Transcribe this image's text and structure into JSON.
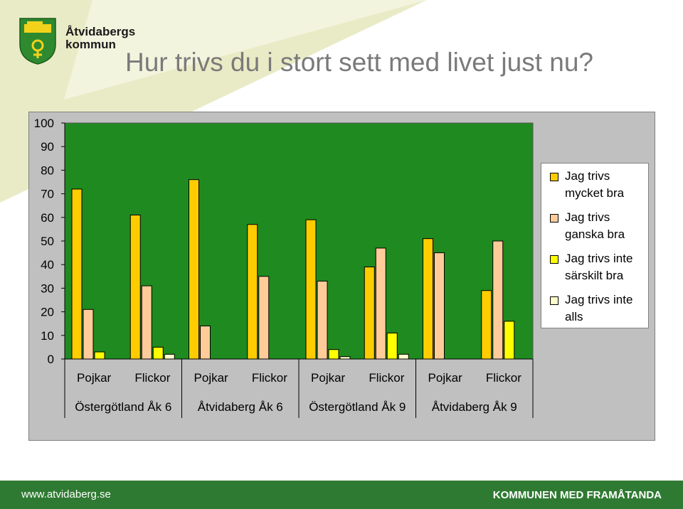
{
  "header": {
    "logo_line1": "Åtvidabergs",
    "logo_line2": "kommun",
    "title": "Hur trivs du i stort sett med livet just nu?"
  },
  "footer": {
    "url": "www.atvidaberg.se",
    "slogan": "KOMMUNEN MED FRAMÅTANDA"
  },
  "colors": {
    "plot_area": "#1f8a1f",
    "chart_background": "#c0c0c0",
    "footer": "#2f7a32",
    "accent_swoosh": "#e9ebc6"
  },
  "chart_data": {
    "type": "bar",
    "title": "",
    "xlabel": "",
    "ylabel": "",
    "ylim": [
      0,
      100
    ],
    "yticks": [
      0,
      10,
      20,
      30,
      40,
      50,
      60,
      70,
      80,
      90,
      100
    ],
    "categories": [
      "Pojkar",
      "Flickor",
      "Pojkar",
      "Flickor",
      "Pojkar",
      "Flickor",
      "Pojkar",
      "Flickor"
    ],
    "groups": [
      "Östergötland Åk 6",
      "Åtvidaberg Åk 6",
      "Östergötland Åk 9",
      "Åtvidaberg Åk 9"
    ],
    "legend_position": "right",
    "grid": false,
    "series": [
      {
        "name": "Jag trivs mycket bra",
        "color": "#ffcc00",
        "values": [
          72,
          61,
          76,
          57,
          59,
          39,
          51,
          29
        ]
      },
      {
        "name": "Jag trivs ganska bra",
        "color": "#ffcc99",
        "values": [
          21,
          31,
          14,
          35,
          33,
          47,
          45,
          50
        ]
      },
      {
        "name": "Jag trivs inte särskilt bra",
        "color": "#ffff00",
        "values": [
          3,
          5,
          0,
          0,
          4,
          11,
          0,
          16
        ]
      },
      {
        "name": "Jag trivs inte alls",
        "color": "#ffffcc",
        "values": [
          0,
          2,
          0,
          0,
          1,
          2,
          0,
          0
        ]
      }
    ]
  }
}
